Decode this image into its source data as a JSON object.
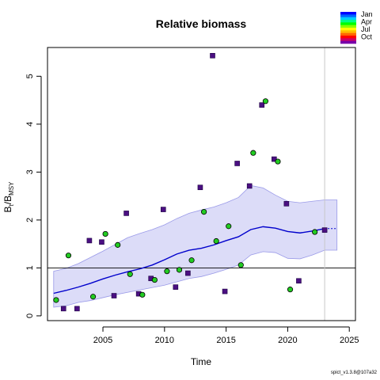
{
  "chart_data": {
    "type": "scatter",
    "title": "Relative biomass",
    "xlabel": "Time",
    "ylabel": {
      "base": "B",
      "sub1": "t",
      "mid": "/B",
      "sub2": "MSY"
    },
    "xlim": [
      2000.5,
      2025.5
    ],
    "ylim": [
      -0.1,
      5.6
    ],
    "xticks": [
      2005,
      2010,
      2015,
      2020,
      2025
    ],
    "yticks": [
      0,
      1,
      2,
      3,
      4,
      5
    ],
    "reference_line_y": 1,
    "vertical_line_x": 2023,
    "series": [
      {
        "name": "",
        "marker": "square",
        "color": "#4b0f82",
        "points": [
          [
            2001.8,
            0.15
          ],
          [
            2002.9,
            0.15
          ],
          [
            2003.9,
            1.57
          ],
          [
            2004.9,
            1.54
          ],
          [
            2005.9,
            0.42
          ],
          [
            2006.9,
            2.14
          ],
          [
            2007.9,
            0.46
          ],
          [
            2008.9,
            0.78
          ],
          [
            2009.9,
            2.22
          ],
          [
            2010.9,
            0.6
          ],
          [
            2011.9,
            0.89
          ],
          [
            2012.9,
            2.68
          ],
          [
            2013.9,
            5.43
          ],
          [
            2014.9,
            0.51
          ],
          [
            2015.9,
            3.18
          ],
          [
            2016.9,
            2.71
          ],
          [
            2017.9,
            4.4
          ],
          [
            2018.9,
            3.27
          ],
          [
            2019.9,
            2.34
          ],
          [
            2020.9,
            0.73
          ],
          [
            2023.0,
            1.79
          ]
        ]
      },
      {
        "name": "",
        "marker": "circle",
        "color": "#22cc22",
        "points": [
          [
            2001.2,
            0.33
          ],
          [
            2002.2,
            1.26
          ],
          [
            2004.2,
            0.4
          ],
          [
            2005.2,
            1.71
          ],
          [
            2006.2,
            1.48
          ],
          [
            2007.2,
            0.87
          ],
          [
            2008.2,
            0.44
          ],
          [
            2009.2,
            0.75
          ],
          [
            2010.2,
            0.93
          ],
          [
            2011.2,
            0.96
          ],
          [
            2012.2,
            1.16
          ],
          [
            2013.2,
            2.17
          ],
          [
            2014.2,
            1.56
          ],
          [
            2015.2,
            1.87
          ],
          [
            2016.2,
            1.06
          ],
          [
            2017.2,
            3.4
          ],
          [
            2018.2,
            4.48
          ],
          [
            2019.2,
            3.22
          ],
          [
            2020.2,
            0.55
          ],
          [
            2022.2,
            1.75
          ]
        ]
      }
    ],
    "median_line": {
      "color": "#0000cc",
      "points": [
        [
          2001,
          0.47
        ],
        [
          2002,
          0.53
        ],
        [
          2003,
          0.6
        ],
        [
          2004,
          0.68
        ],
        [
          2005,
          0.77
        ],
        [
          2006,
          0.85
        ],
        [
          2007,
          0.92
        ],
        [
          2008,
          0.98
        ],
        [
          2009,
          1.06
        ],
        [
          2010,
          1.17
        ],
        [
          2011,
          1.29
        ],
        [
          2012,
          1.37
        ],
        [
          2013,
          1.41
        ],
        [
          2014,
          1.48
        ],
        [
          2015,
          1.57
        ],
        [
          2016,
          1.65
        ],
        [
          2017,
          1.8
        ],
        [
          2018,
          1.86
        ],
        [
          2019,
          1.83
        ],
        [
          2020,
          1.76
        ],
        [
          2021,
          1.73
        ],
        [
          2022,
          1.77
        ],
        [
          2023,
          1.82
        ]
      ]
    },
    "median_projection": {
      "color": "#0000cc",
      "points": [
        [
          2023,
          1.82
        ],
        [
          2024,
          1.82
        ]
      ]
    },
    "confidence_band": {
      "color": "#dcdcf8",
      "upper": [
        [
          2001,
          0.93
        ],
        [
          2002,
          0.99
        ],
        [
          2003,
          1.09
        ],
        [
          2004,
          1.22
        ],
        [
          2005,
          1.35
        ],
        [
          2006,
          1.49
        ],
        [
          2007,
          1.63
        ],
        [
          2008,
          1.72
        ],
        [
          2009,
          1.8
        ],
        [
          2010,
          1.9
        ],
        [
          2011,
          2.03
        ],
        [
          2012,
          2.14
        ],
        [
          2013,
          2.21
        ],
        [
          2014,
          2.27
        ],
        [
          2015,
          2.36
        ],
        [
          2016,
          2.47
        ],
        [
          2017,
          2.72
        ],
        [
          2018,
          2.67
        ],
        [
          2019,
          2.52
        ],
        [
          2020,
          2.39
        ],
        [
          2021,
          2.36
        ],
        [
          2022,
          2.39
        ],
        [
          2023,
          2.42
        ],
        [
          2024,
          2.42
        ]
      ],
      "lower": [
        [
          2001,
          0.18
        ],
        [
          2002,
          0.21
        ],
        [
          2003,
          0.28
        ],
        [
          2004,
          0.32
        ],
        [
          2005,
          0.38
        ],
        [
          2006,
          0.44
        ],
        [
          2007,
          0.49
        ],
        [
          2008,
          0.54
        ],
        [
          2009,
          0.59
        ],
        [
          2010,
          0.64
        ],
        [
          2011,
          0.71
        ],
        [
          2012,
          0.78
        ],
        [
          2013,
          0.82
        ],
        [
          2014,
          0.89
        ],
        [
          2015,
          0.97
        ],
        [
          2016,
          1.06
        ],
        [
          2017,
          1.27
        ],
        [
          2018,
          1.34
        ],
        [
          2019,
          1.32
        ],
        [
          2020,
          1.2
        ],
        [
          2021,
          1.19
        ],
        [
          2022,
          1.27
        ],
        [
          2023,
          1.37
        ],
        [
          2024,
          1.37
        ]
      ]
    },
    "legend": {
      "placement": "top-right",
      "labels": [
        "Jan",
        "Apr",
        "Jul",
        "Oct"
      ],
      "colors": [
        "#0000ff",
        "#0066ff",
        "#00ccff",
        "#00ff88",
        "#00ff00",
        "#88ff00",
        "#ffff00",
        "#ffbb00",
        "#ff6600",
        "#ff0000",
        "#cc0066",
        "#7700aa"
      ]
    }
  },
  "footer": "spict_v1.3.8@107a32"
}
